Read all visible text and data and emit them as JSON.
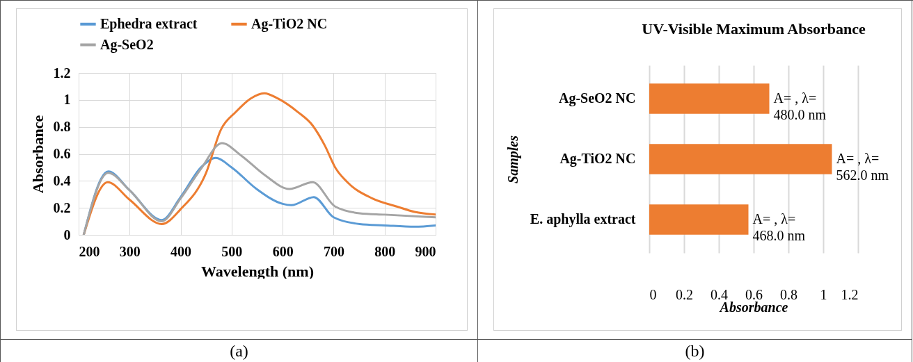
{
  "chart_data": [
    {
      "type": "line",
      "xlabel": "Wavelength (nm)",
      "ylabel": "Absorbance",
      "xlim": [
        200,
        900
      ],
      "ylim": [
        0,
        1.2
      ],
      "xticks": [
        200,
        300,
        400,
        500,
        600,
        700,
        800,
        900
      ],
      "yticks": [
        {
          "value": 0,
          "label": "0"
        },
        0.2,
        0.4,
        0.6,
        0.8,
        {
          "value": 1,
          "label": "1"
        },
        1.2
      ],
      "grid": true,
      "legend": "top",
      "annotations": [
        "(a)"
      ],
      "series": [
        {
          "name": "Ephedra extract",
          "color": "#5b9bd5",
          "x": [
            210,
            258,
            300,
            363,
            400,
            440,
            469,
            500,
            549,
            600,
            617,
            661,
            700,
            751,
            800,
            859,
            900
          ],
          "values": [
            0,
            0.47,
            0.33,
            0.11,
            0.28,
            0.5,
            0.57,
            0.5,
            0.34,
            0.23,
            0.22,
            0.28,
            0.13,
            0.08,
            0.07,
            0.06,
            0.07
          ]
        },
        {
          "name": "Ag-TiO2 NC",
          "color": "#ed7d31",
          "x": [
            210,
            257,
            300,
            363,
            400,
            450,
            479,
            508,
            537,
            564,
            591,
            630,
            659,
            683,
            703,
            727,
            776,
            824,
            859,
            900
          ],
          "values": [
            0,
            0.39,
            0.26,
            0.08,
            0.19,
            0.46,
            0.78,
            0.91,
            1.01,
            1.05,
            1.01,
            0.91,
            0.81,
            0.66,
            0.5,
            0.39,
            0.27,
            0.21,
            0.17,
            0.15
          ]
        },
        {
          "name": "Ag-SeO2",
          "color": "#a5a5a5",
          "x": [
            210,
            258,
            300,
            363,
            400,
            440,
            481,
            518,
            566,
            613,
            659,
            703,
            751,
            800,
            900
          ],
          "values": [
            0,
            0.46,
            0.33,
            0.1,
            0.27,
            0.49,
            0.68,
            0.59,
            0.44,
            0.34,
            0.39,
            0.21,
            0.16,
            0.15,
            0.13
          ]
        }
      ]
    },
    {
      "type": "bar",
      "orientation": "horizontal",
      "title": "UV-Visible Maximum Absorbance",
      "xlabel": "Absorbance",
      "ylabel": "Samples",
      "categories": [
        "Ag-SeO2 NC",
        "Ag-TiO2 NC",
        "E. aphylla extract"
      ],
      "values": [
        0.69,
        1.05,
        0.57
      ],
      "color": "#ed7d31",
      "xlim": [
        0,
        1.2
      ],
      "xticks": [
        {
          "value": 0,
          "label": "0"
        },
        0.2,
        0.4,
        0.6,
        0.8,
        {
          "value": 1,
          "label": "1"
        },
        1.2
      ],
      "grid": "x",
      "annotations": [
        {
          "text": "A= , λ=\n480.0 nm",
          "x": 0.69,
          "y": "Ag-SeO2 NC"
        },
        {
          "text": "A= , λ=\n562.0 nm",
          "x": 1.05,
          "y": "Ag-TiO2 NC"
        },
        {
          "text": "A= , λ=\n468.0 nm",
          "x": 0.57,
          "y": "E. aphylla extract"
        },
        "(b)"
      ]
    }
  ]
}
